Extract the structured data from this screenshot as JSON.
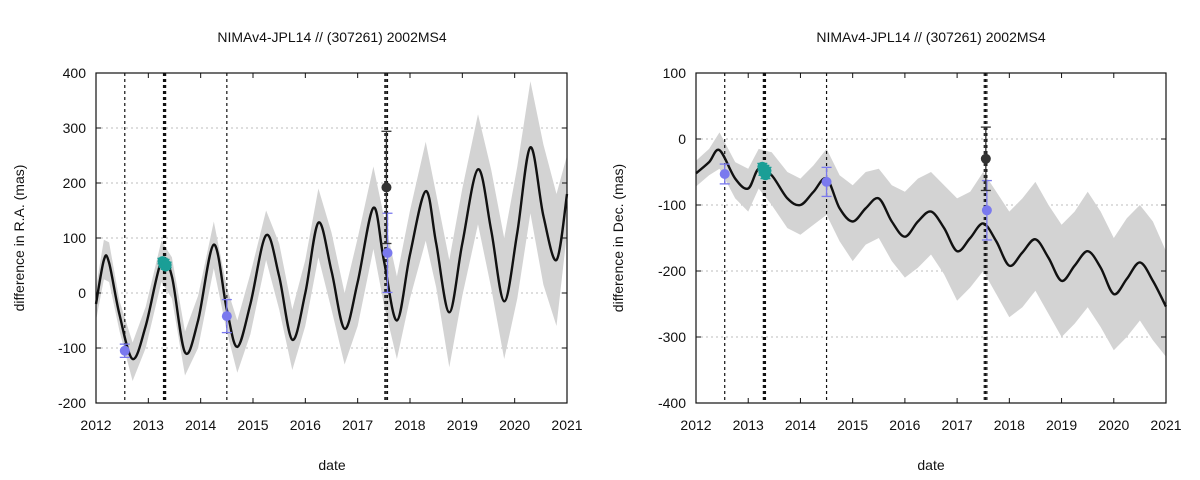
{
  "chart_data": [
    {
      "type": "line",
      "title": "NIMAv4-JPL14 // (307261) 2002MS4",
      "xlabel": "date",
      "ylabel": "difference in R.A. (mas)",
      "xlim": [
        2012,
        2021
      ],
      "ylim": [
        -200,
        400
      ],
      "xticks": [
        2012,
        2013,
        2014,
        2015,
        2016,
        2017,
        2018,
        2019,
        2020,
        2021
      ],
      "yticks": [
        -200,
        -100,
        0,
        100,
        200,
        300,
        400
      ],
      "grid": "horizontal-dotted",
      "epoch_lines": [
        2012.55,
        2013.29,
        2013.31,
        2013.33,
        2014.5,
        2017.52,
        2017.545,
        2017.57
      ],
      "model": {
        "name": "model",
        "color": "#111111",
        "x": [
          2012.0,
          2012.15,
          2012.25,
          2012.45,
          2012.7,
          2012.95,
          2013.25,
          2013.45,
          2013.7,
          2013.95,
          2014.25,
          2014.5,
          2014.7,
          2014.95,
          2015.25,
          2015.5,
          2015.75,
          2016.0,
          2016.25,
          2016.5,
          2016.75,
          2017.0,
          2017.3,
          2017.5,
          2017.75,
          2018.0,
          2018.3,
          2018.5,
          2018.75,
          2019.0,
          2019.3,
          2019.55,
          2019.8,
          2020.05,
          2020.3,
          2020.55,
          2020.8,
          2021.0
        ],
        "y": [
          -20,
          60,
          55,
          -40,
          -120,
          -60,
          58,
          30,
          -108,
          -50,
          88,
          -30,
          -98,
          -20,
          105,
          30,
          -85,
          0,
          128,
          40,
          -65,
          20,
          155,
          60,
          -50,
          70,
          185,
          90,
          -35,
          90,
          225,
          115,
          -15,
          110,
          265,
          140,
          60,
          180
        ]
      },
      "band": {
        "name": "uncertainty",
        "x": [
          2012.0,
          2012.15,
          2012.25,
          2012.45,
          2012.7,
          2012.95,
          2013.25,
          2013.45,
          2013.7,
          2013.95,
          2014.25,
          2014.5,
          2014.7,
          2014.95,
          2015.25,
          2015.5,
          2015.75,
          2016.0,
          2016.25,
          2016.5,
          2016.75,
          2017.0,
          2017.3,
          2017.5,
          2017.75,
          2018.0,
          2018.3,
          2018.5,
          2018.75,
          2019.0,
          2019.3,
          2019.55,
          2019.8,
          2020.05,
          2020.3,
          2020.55,
          2020.8,
          2021.0
        ],
        "upper": [
          10,
          97,
          92,
          -15,
          -90,
          -25,
          95,
          65,
          -70,
          -5,
          130,
          10,
          -50,
          35,
          150,
          90,
          -30,
          60,
          190,
          110,
          0,
          100,
          230,
          140,
          30,
          150,
          275,
          180,
          60,
          190,
          325,
          225,
          100,
          230,
          385,
          270,
          180,
          250
        ],
        "lower": [
          -50,
          25,
          20,
          -70,
          -160,
          -100,
          20,
          -10,
          -150,
          -100,
          45,
          -70,
          -145,
          -75,
          60,
          -30,
          -140,
          -60,
          65,
          -30,
          -130,
          -60,
          80,
          -20,
          -120,
          -10,
          95,
          10,
          -135,
          -5,
          125,
          10,
          -120,
          -10,
          145,
          15,
          -60,
          110
        ]
      },
      "series": [
        {
          "name": "violet",
          "color": "#7a79ee",
          "x": [
            2012.55,
            2014.5,
            2017.57
          ],
          "y": [
            -105,
            -42,
            73
          ],
          "err": [
            12,
            30,
            72
          ]
        },
        {
          "name": "teal",
          "color": "#1a9e96",
          "x": [
            2013.27,
            2013.29,
            2013.31,
            2013.33,
            2013.35
          ],
          "y": [
            58,
            52,
            56,
            48,
            51
          ],
          "err": [
            5,
            5,
            5,
            5,
            5
          ]
        },
        {
          "name": "dark",
          "color": "#333333",
          "x": [
            2017.55
          ],
          "y": [
            192
          ],
          "err": [
            102
          ]
        }
      ]
    },
    {
      "type": "line",
      "title": "NIMAv4-JPL14 // (307261) 2002MS4",
      "xlabel": "date",
      "ylabel": "difference in Dec. (mas)",
      "xlim": [
        2012,
        2021
      ],
      "ylim": [
        -400,
        100
      ],
      "xticks": [
        2012,
        2013,
        2014,
        2015,
        2016,
        2017,
        2018,
        2019,
        2020,
        2021
      ],
      "yticks": [
        -400,
        -300,
        -200,
        -100,
        0,
        100
      ],
      "grid": "horizontal-dotted",
      "epoch_lines": [
        2012.55,
        2013.29,
        2013.31,
        2013.33,
        2014.5,
        2017.52,
        2017.545,
        2017.57
      ],
      "model": {
        "name": "model",
        "color": "#111111",
        "x": [
          2012.0,
          2012.25,
          2012.45,
          2012.75,
          2013.0,
          2013.2,
          2013.45,
          2013.75,
          2014.0,
          2014.25,
          2014.5,
          2014.75,
          2015.0,
          2015.25,
          2015.5,
          2015.75,
          2016.0,
          2016.25,
          2016.5,
          2016.75,
          2017.0,
          2017.25,
          2017.5,
          2017.75,
          2018.0,
          2018.25,
          2018.5,
          2018.75,
          2019.0,
          2019.25,
          2019.5,
          2019.75,
          2020.0,
          2020.25,
          2020.5,
          2020.75,
          2021.0
        ],
        "y": [
          -52,
          -35,
          -17,
          -60,
          -75,
          -45,
          -55,
          -90,
          -100,
          -80,
          -60,
          -105,
          -125,
          -105,
          -90,
          -125,
          -148,
          -125,
          -110,
          -135,
          -170,
          -150,
          -128,
          -155,
          -192,
          -172,
          -152,
          -180,
          -215,
          -192,
          -170,
          -195,
          -235,
          -212,
          -187,
          -215,
          -254
        ]
      },
      "band": {
        "name": "uncertainty",
        "x": [
          2012.0,
          2012.25,
          2012.45,
          2012.75,
          2013.0,
          2013.2,
          2013.45,
          2013.75,
          2014.0,
          2014.25,
          2014.5,
          2014.75,
          2015.0,
          2015.25,
          2015.5,
          2015.75,
          2016.0,
          2016.25,
          2016.5,
          2016.75,
          2017.0,
          2017.25,
          2017.5,
          2017.75,
          2018.0,
          2018.25,
          2018.5,
          2018.75,
          2019.0,
          2019.25,
          2019.5,
          2019.75,
          2020.0,
          2020.25,
          2020.5,
          2020.75,
          2021.0
        ],
        "upper": [
          -33,
          -15,
          10,
          -35,
          -45,
          -15,
          -20,
          -50,
          -60,
          -40,
          -15,
          -55,
          -70,
          -50,
          -45,
          -70,
          -80,
          -60,
          -50,
          -70,
          -90,
          -80,
          -50,
          -80,
          -110,
          -90,
          -65,
          -100,
          -130,
          -110,
          -80,
          -110,
          -150,
          -120,
          -100,
          -125,
          -170
        ],
        "lower": [
          -72,
          -55,
          -45,
          -90,
          -110,
          -75,
          -100,
          -135,
          -145,
          -130,
          -115,
          -155,
          -185,
          -160,
          -150,
          -185,
          -210,
          -195,
          -175,
          -205,
          -245,
          -225,
          -200,
          -235,
          -270,
          -255,
          -230,
          -265,
          -300,
          -280,
          -255,
          -285,
          -320,
          -300,
          -275,
          -305,
          -330
        ]
      },
      "series": [
        {
          "name": "violet",
          "color": "#7a79ee",
          "x": [
            2012.55,
            2014.5,
            2017.57
          ],
          "y": [
            -53,
            -65,
            -108
          ],
          "err": [
            15,
            22,
            45
          ]
        },
        {
          "name": "teal",
          "color": "#1a9e96",
          "x": [
            2013.27,
            2013.29,
            2013.31,
            2013.33,
            2013.35
          ],
          "y": [
            -42,
            -50,
            -45,
            -55,
            -48
          ],
          "err": [
            5,
            5,
            5,
            5,
            5
          ]
        },
        {
          "name": "dark",
          "color": "#333333",
          "x": [
            2017.55
          ],
          "y": [
            -30
          ],
          "err": [
            48
          ]
        }
      ]
    }
  ]
}
